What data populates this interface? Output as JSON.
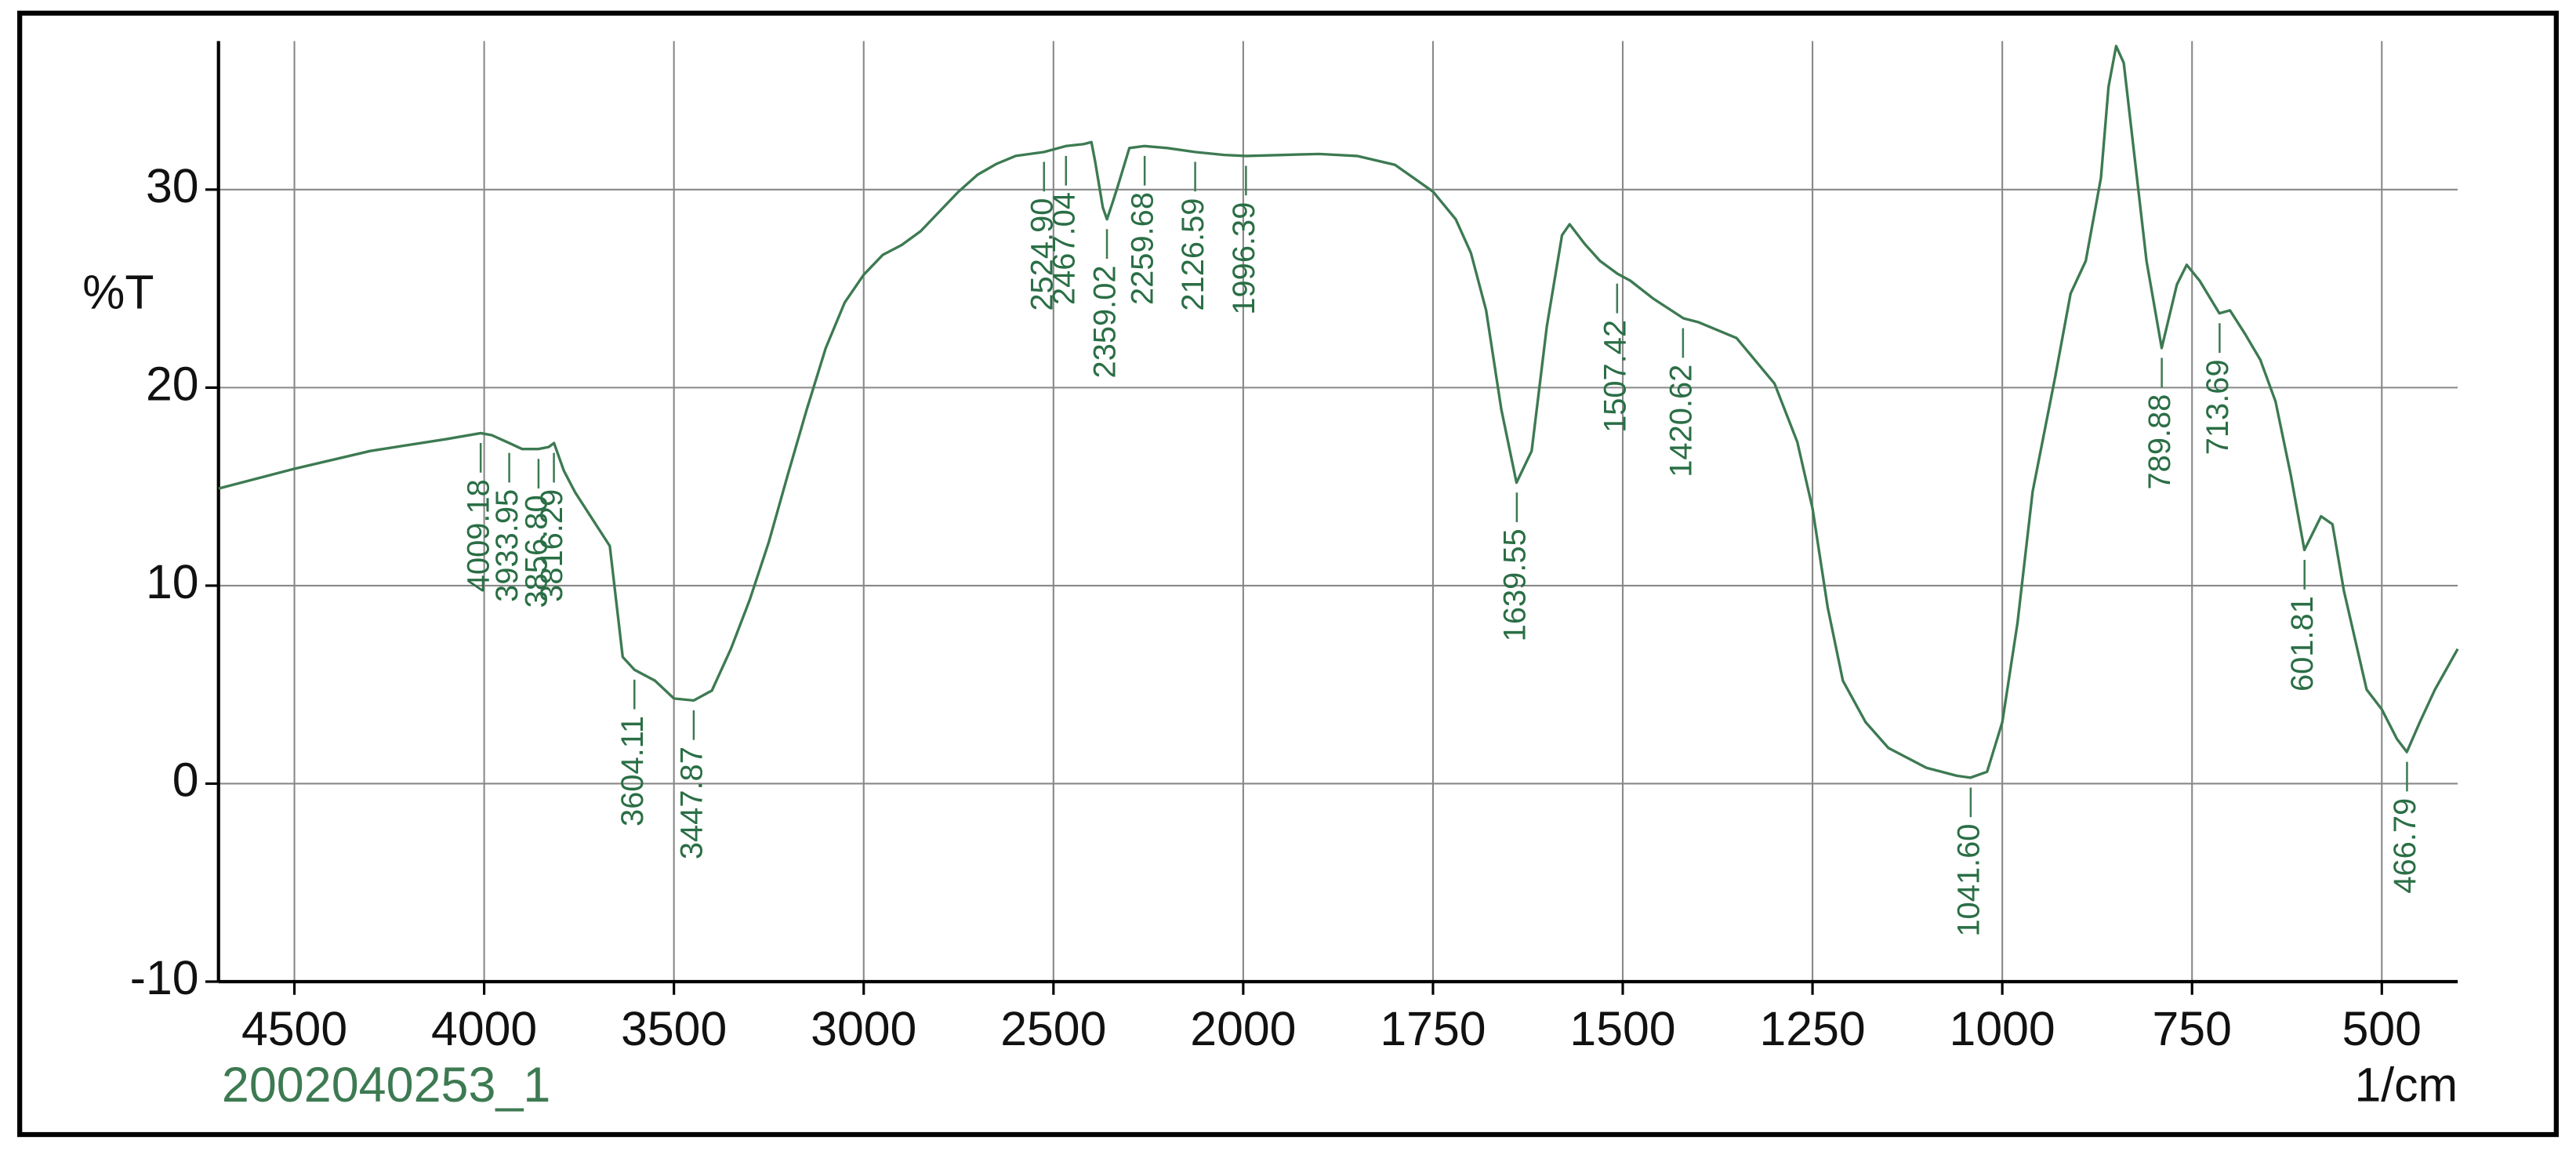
{
  "chart_data": {
    "type": "line",
    "x_label": "1/cm",
    "y_label": "%T",
    "xlim": [
      4700,
      400
    ],
    "x_scale_break": {
      "at": 2000,
      "zoom": 2
    },
    "xticks": [
      4500,
      4000,
      3500,
      3000,
      2500,
      2000,
      1750,
      1500,
      1250,
      1000,
      750,
      500
    ],
    "ylim": [
      -10,
      37.5
    ],
    "yticks": [
      -10,
      0,
      10,
      20,
      30
    ],
    "grid": true,
    "series": [
      {
        "name": "2002040253_1",
        "color": "#3d7a52",
        "x": [
          4700,
          4500,
          4300,
          4100,
          4009,
          3980,
          3934,
          3900,
          3857,
          3830,
          3816,
          3790,
          3760,
          3669,
          3635,
          3604,
          3550,
          3500,
          3448,
          3400,
          3350,
          3300,
          3250,
          3200,
          3150,
          3100,
          3050,
          3000,
          2950,
          2900,
          2850,
          2800,
          2750,
          2700,
          2650,
          2600,
          2525,
          2467,
          2420,
          2400,
          2390,
          2370,
          2359,
          2345,
          2330,
          2300,
          2260,
          2200,
          2127,
          2050,
          1996,
          1900,
          1850,
          1800,
          1750,
          1720,
          1700,
          1680,
          1660,
          1640,
          1620,
          1600,
          1580,
          1570,
          1550,
          1530,
          1507,
          1490,
          1460,
          1420,
          1400,
          1350,
          1300,
          1270,
          1250,
          1230,
          1210,
          1180,
          1150,
          1100,
          1060,
          1042,
          1020,
          1000,
          980,
          960,
          930,
          910,
          890,
          870,
          860,
          850,
          840,
          825,
          810,
          790,
          770,
          757,
          740,
          714,
          700,
          680,
          660,
          640,
          620,
          602,
          580,
          565,
          550,
          520,
          500,
          480,
          467,
          450,
          430,
          400
        ],
        "values": [
          14.9,
          15.9,
          16.8,
          17.4,
          17.7,
          17.6,
          17.2,
          16.9,
          16.9,
          17.0,
          17.2,
          15.8,
          14.7,
          12,
          6.4,
          5.75,
          5.2,
          4.3,
          4.2,
          4.7,
          6.8,
          9.3,
          12.2,
          15.6,
          18.9,
          22,
          24.3,
          25.7,
          26.7,
          27.2,
          27.9,
          28.9,
          29.9,
          30.75,
          31.3,
          31.7,
          31.9,
          32.2,
          32.3,
          32.4,
          31.4,
          29.1,
          28.5,
          29.3,
          30.2,
          32.1,
          32.2,
          32.1,
          31.9,
          31.75,
          31.7,
          31.8,
          31.7,
          31.25,
          29.9,
          28.5,
          26.8,
          23.9,
          18.9,
          15.2,
          16.8,
          23.1,
          27.7,
          28.25,
          27.25,
          26.4,
          25.75,
          25.4,
          24.5,
          23.5,
          23.3,
          22.5,
          20.2,
          17.25,
          13.9,
          8.9,
          5.2,
          3.1,
          1.8,
          0.8,
          0.4,
          0.3,
          0.6,
          3.1,
          8.1,
          14.75,
          20.6,
          24.75,
          26.4,
          30.6,
          35.2,
          37.25,
          36.4,
          31.4,
          26.4,
          22,
          25.2,
          26.2,
          25.4,
          23.75,
          23.9,
          22.7,
          21.4,
          19.3,
          15.6,
          11.8,
          13.5,
          13.1,
          9.75,
          4.75,
          3.75,
          2.25,
          1.6,
          3.1,
          4.75,
          6.8
        ]
      }
    ],
    "peaks": {
      "x": [
        4009.18,
        3933.95,
        3856.8,
        3816.29,
        3604.11,
        3447.87,
        2524.9,
        2467.04,
        2359.02,
        2259.68,
        2126.59,
        1996.39,
        1639.55,
        1507.42,
        1420.62,
        1041.6,
        789.88,
        713.69,
        601.81,
        466.79
      ],
      "labels": [
        "4009.18",
        "3933.95",
        "3856.80",
        "3816.29",
        "3604.11",
        "3447.87",
        "2524.90",
        "2467.04",
        "2359.02",
        "2259.68",
        "2126.59",
        "1996.39",
        "1639.55",
        "1507.42",
        "1420.62",
        "1041.60",
        "789.88",
        "713.69",
        "601.81",
        "466.79"
      ],
      "values": [
        17.7,
        17.2,
        16.9,
        17.2,
        5.75,
        4.2,
        31.9,
        32.2,
        28.5,
        32.2,
        31.9,
        31.7,
        15.2,
        25.75,
        23.5,
        0.3,
        22,
        23.75,
        11.8,
        1.6
      ]
    }
  }
}
